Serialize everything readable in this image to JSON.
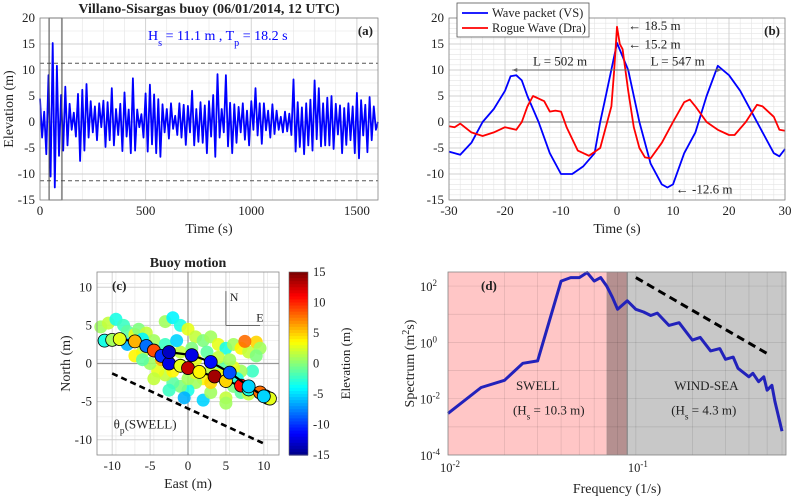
{
  "colors": {
    "blue": "#0000ff",
    "red": "#ff0000",
    "swell_region": "#ffc6c6",
    "windsea_region": "#c8c8c8",
    "overlap_region": "#b59090",
    "spectrum": "#2222bb"
  },
  "chart_data": [
    {
      "type": "line",
      "panel": "(a)",
      "title": "Villano-Sisargas buoy (06/01/2014, 12 UTC)",
      "xlabel": "Time (s)",
      "ylabel": "Elevation (m)",
      "annotation": {
        "hs": "H",
        "hs_sub": "s",
        "hs_val": " = 11.1 m  , T",
        "tp_sub": "p",
        "tp_val": " = 18.2 s"
      },
      "xlim": [
        0,
        1600
      ],
      "ylim": [
        -15,
        20
      ],
      "xticks": [
        0,
        500,
        1000,
        1500
      ],
      "yticks": [
        -15,
        -10,
        -5,
        0,
        5,
        10,
        15,
        20
      ],
      "threshold_lines": [
        11.3,
        -11.3
      ],
      "highlight_window": [
        43,
        104
      ],
      "t_step": 10,
      "values": [
        4.5,
        -3,
        2,
        -6.2,
        9,
        -10.5,
        15.2,
        -12.6,
        10.8,
        -6.5,
        5.2,
        -5.5,
        6.8,
        -4.5,
        3.5,
        -1.5,
        1.8,
        -2.8,
        5.4,
        -7.5,
        6.2,
        -5.5,
        7.3,
        -3,
        4,
        -2,
        3,
        -3.5,
        3.6,
        -1,
        4.1,
        -4.8,
        3.8,
        -3.5,
        6.5,
        -4.5,
        2.5,
        -2.5,
        3.5,
        -5.6,
        5.7,
        -2.8,
        2.4,
        -6,
        8.4,
        -5.5,
        2.4,
        -1,
        1.5,
        -3,
        5.5,
        -5.7,
        7.2,
        -4.3,
        5.3,
        -6,
        4.4,
        -6.7,
        3.4,
        -2,
        2.5,
        -3.2,
        3.6,
        -1.3,
        1.2,
        -2.5,
        3.6,
        -3,
        3.3,
        -4.4,
        3.1,
        -2,
        6,
        -4.5,
        2.5,
        -3.8,
        3.8,
        -4,
        3.2,
        -6,
        4,
        -2.8,
        5.2,
        -6.7,
        9.2,
        -3,
        2.5,
        -2,
        9,
        -4.7,
        3.7,
        -6,
        3.4,
        -4,
        2.9,
        -2,
        3.6,
        -3.4,
        2.2,
        -4.5,
        4,
        -1.5,
        6.5,
        -2.6,
        3.6,
        -4.2,
        3.6,
        -1.6,
        2.2,
        -3,
        3.4,
        -2.3,
        2.2,
        -1.5,
        1,
        -2,
        2,
        -1.8,
        1.6,
        -2.5,
        8.2,
        -5.7,
        3.8,
        -4.8,
        2.8,
        -6.2,
        3.6,
        -4.5,
        4.3,
        -5.5,
        8,
        -3.3,
        6.5,
        -4.7,
        3.6,
        -4.5,
        4.7,
        -4.5,
        5,
        -5.2,
        3.5,
        -2.4,
        3.2,
        -6,
        2.7,
        -4.4,
        3.6,
        -3.5,
        3,
        -6,
        5.6,
        -7,
        4.2,
        -2.6,
        3.3,
        -5.8,
        4.8,
        -3.5,
        3,
        -1.5,
        0
      ]
    },
    {
      "type": "line",
      "panel": "(b)",
      "xlabel": "Time (s)",
      "xlim": [
        -30,
        30
      ],
      "ylim": [
        -15,
        20
      ],
      "xticks": [
        -30,
        -20,
        -10,
        0,
        10,
        20,
        30
      ],
      "yticks": [
        -15,
        -10,
        -5,
        0,
        5,
        10,
        15,
        20
      ],
      "series": [
        {
          "name": "Wave packet (VS)",
          "color": "#0000ff",
          "x": [
            -30,
            -28,
            -26,
            -24,
            -22,
            -20,
            -19,
            -18,
            -17,
            -16,
            -14,
            -12,
            -10,
            -8,
            -6,
            -4,
            -3,
            -2,
            0,
            2,
            4,
            6,
            8,
            9,
            10,
            12,
            14,
            16,
            18,
            20,
            22,
            24,
            26,
            28,
            29,
            30
          ],
          "y": [
            -5.7,
            -6.3,
            -4,
            0,
            2.5,
            6,
            8.8,
            9,
            8,
            5,
            0,
            -6,
            -10,
            -10,
            -8.5,
            -6,
            0,
            5,
            15.2,
            10,
            0,
            -8,
            -12,
            -12.6,
            -12,
            -6,
            -2,
            5,
            10.8,
            9,
            6,
            2,
            -2,
            -6,
            -6.6,
            -5.2
          ]
        },
        {
          "name": "Rogue Wave (Dra)",
          "color": "#ff0000",
          "x": [
            -30,
            -29,
            -28,
            -26,
            -24,
            -22,
            -20,
            -18,
            -17,
            -16,
            -15,
            -14,
            -13,
            -12,
            -11,
            -10,
            -9,
            -7,
            -5,
            -3,
            -1,
            -0.5,
            0,
            0.5,
            1,
            2,
            3,
            4,
            5,
            6,
            8,
            10,
            12,
            13,
            14,
            16,
            18,
            20,
            21,
            23,
            25,
            26,
            28,
            29,
            30
          ],
          "y": [
            -0.8,
            -1,
            -0.3,
            -2,
            -2.7,
            -2,
            -1,
            -1.5,
            0,
            3,
            5,
            4.5,
            4,
            2,
            2.2,
            2,
            -1,
            -5.5,
            -6.5,
            -5,
            3,
            10,
            18.3,
            15,
            14,
            6,
            -1,
            -5,
            -6.8,
            -7,
            -4,
            0,
            3.8,
            4.3,
            3,
            0,
            -1.5,
            -2.5,
            -2.5,
            0,
            3.3,
            3,
            1,
            -1.5,
            -1.7
          ]
        }
      ],
      "annotations": [
        {
          "text": "← 18.5 m",
          "x": 2,
          "y": 18.5
        },
        {
          "text": "← 15.2 m",
          "x": 2,
          "y": 14.9
        },
        {
          "text": "← -12.6 m",
          "x": 10.5,
          "y": -13
        },
        {
          "text": "L = 502 m",
          "x": -15,
          "y": 11.6
        },
        {
          "text": "L = 547 m",
          "x": 6,
          "y": 11.6
        }
      ],
      "length_arrows": [
        {
          "from": 0,
          "to": -18.7,
          "y": 10
        },
        {
          "from": 0,
          "to": 18.7,
          "y": 10
        }
      ]
    },
    {
      "type": "scatter",
      "panel": "(c)",
      "title": "Buoy motion",
      "xlabel": "East (m)",
      "ylabel": "North (m)",
      "xlim": [
        -12,
        12
      ],
      "ylim": [
        -12,
        12
      ],
      "xticks": [
        -10,
        -5,
        0,
        5,
        10
      ],
      "yticks": [
        -10,
        -5,
        0,
        5,
        10
      ],
      "compass": {
        "north": "N",
        "east": "E"
      },
      "direction_label": {
        "theta": "θ",
        "sub": "p",
        "text": "(SWELL)"
      },
      "direction_line": [
        [
          -10,
          -1.3
        ],
        [
          10,
          -10.5
        ]
      ],
      "colorbar": {
        "label": "Elevation (m)",
        "range": [
          -15,
          15
        ],
        "ticks": [
          -15,
          -10,
          -5,
          0,
          5,
          10,
          15
        ]
      },
      "points": [
        [
          -11.5,
          4.8,
          1
        ],
        [
          -10.5,
          5.3,
          2
        ],
        [
          -9.5,
          5.8,
          -3
        ],
        [
          -8.5,
          5,
          -2
        ],
        [
          -8,
          4.2,
          -1
        ],
        [
          -7,
          3.8,
          3
        ],
        [
          -6.5,
          4.5,
          0
        ],
        [
          -5.5,
          4,
          2
        ],
        [
          -4.5,
          3,
          1
        ],
        [
          -5,
          2,
          -2
        ],
        [
          -6,
          1.5,
          2
        ],
        [
          -7,
          1,
          4
        ],
        [
          -4,
          1.5,
          3
        ],
        [
          -3,
          5.5,
          1
        ],
        [
          -2,
          6,
          -4
        ],
        [
          -1,
          5,
          -3
        ],
        [
          0,
          4.5,
          3
        ],
        [
          1,
          3.5,
          2
        ],
        [
          2,
          3,
          0
        ],
        [
          3,
          3.5,
          1
        ],
        [
          4,
          2.5,
          3
        ],
        [
          5,
          2,
          -3
        ],
        [
          6,
          2.5,
          1
        ],
        [
          7,
          2,
          4
        ],
        [
          8,
          1.5,
          2
        ],
        [
          9,
          2.8,
          5
        ],
        [
          9.5,
          2,
          1
        ],
        [
          7.5,
          2.9,
          8
        ],
        [
          9,
          1,
          0
        ],
        [
          8.5,
          -1,
          -2
        ],
        [
          7,
          -1,
          1
        ],
        [
          6,
          -0.5,
          3
        ],
        [
          4.5,
          -0.5,
          -1
        ],
        [
          3,
          -1,
          2
        ],
        [
          2,
          -2,
          4
        ],
        [
          1,
          -2.5,
          1
        ],
        [
          0,
          -3.5,
          -3
        ],
        [
          -1,
          -3,
          0
        ],
        [
          -2,
          -2.5,
          -1
        ],
        [
          -3,
          -1.5,
          2
        ],
        [
          -4,
          -1,
          3
        ],
        [
          -5,
          0,
          1
        ],
        [
          -6,
          0.5,
          -1
        ],
        [
          -4.5,
          -2,
          2
        ],
        [
          -2.5,
          -3.5,
          -2
        ],
        [
          -0.5,
          -4.5,
          -6
        ],
        [
          2,
          -4.8,
          -5
        ],
        [
          3,
          -3.8,
          1
        ],
        [
          5,
          -4.5,
          2
        ],
        [
          5,
          -5.2,
          1
        ],
        [
          6,
          -3,
          0
        ],
        [
          7,
          -3.8,
          -1
        ],
        [
          8,
          -4,
          2
        ],
        [
          4,
          -1.5,
          4
        ],
        [
          1,
          0.5,
          3
        ],
        [
          -1,
          1.5,
          2
        ],
        [
          -3,
          2.5,
          -2
        ],
        [
          -1.5,
          3,
          -5
        ],
        [
          0.5,
          2,
          0
        ],
        [
          2.5,
          1.5,
          -1
        ],
        [
          4,
          0.8,
          2
        ],
        [
          3,
          -2.5,
          5
        ],
        [
          -2,
          -1,
          4
        ],
        [
          -3.5,
          0.5,
          6
        ],
        [
          -8,
          2.5,
          -6
        ],
        [
          -6,
          3.2,
          -4
        ],
        [
          5.5,
          0.5,
          1
        ],
        [
          0,
          -2,
          1
        ],
        [
          1,
          -1.2,
          3
        ],
        [
          6.5,
          -2,
          -3
        ]
      ],
      "trajectory": [
        [
          -11,
          3,
          -3
        ],
        [
          -10,
          3.1,
          1
        ],
        [
          -9,
          3.2,
          3
        ],
        [
          -7,
          2.9,
          6
        ],
        [
          -5.5,
          2.3,
          -8
        ],
        [
          -4.5,
          1.7,
          9
        ],
        [
          -3.5,
          1,
          -10
        ],
        [
          -2.5,
          0,
          -12
        ],
        [
          -1,
          -0.3,
          3
        ],
        [
          0,
          -0.6,
          13
        ],
        [
          1.5,
          -1.1,
          4
        ],
        [
          3.5,
          -1.7,
          14
        ],
        [
          5,
          -2.3,
          5
        ],
        [
          7,
          -2.9,
          11
        ],
        [
          8,
          -3.4,
          -3
        ],
        [
          9.5,
          -3.8,
          8
        ],
        [
          10.2,
          -4.3,
          -4
        ],
        [
          10.5,
          -4.5,
          1
        ],
        [
          10.8,
          -4.6,
          3
        ]
      ],
      "trajectory2": [
        [
          -2.5,
          1.5,
          -13
        ],
        [
          0.5,
          1.1,
          -12
        ],
        [
          3,
          0.2,
          -11
        ],
        [
          5.5,
          -1.2,
          -9
        ],
        [
          8,
          -3,
          -5
        ],
        [
          10,
          -4.3,
          -5
        ]
      ]
    },
    {
      "type": "line",
      "panel": "(d)",
      "xlabel": "Frequency (1/s)",
      "ylabel": "Spectrum (m",
      "ylabel_sup": "2",
      "ylabel_end": "s)",
      "xscale": "log",
      "yscale": "log",
      "xlim": [
        0.01,
        0.63
      ],
      "ylim": [
        0.0001,
        316
      ],
      "xticks": [
        {
          "v": 0.01,
          "base": "10",
          "exp": "-2"
        },
        {
          "v": 0.1,
          "base": "10",
          "exp": "-1"
        }
      ],
      "yticks": [
        {
          "v": 0.0001,
          "base": "10",
          "exp": "-4"
        },
        {
          "v": 0.01,
          "base": "10",
          "exp": "-2"
        },
        {
          "v": 1,
          "base": "10",
          "exp": "0"
        },
        {
          "v": 100,
          "base": "10",
          "exp": "2"
        }
      ],
      "regions": [
        {
          "name": "swell",
          "range": [
            0.01,
            0.07
          ]
        },
        {
          "name": "overlap",
          "range": [
            0.07,
            0.09
          ]
        },
        {
          "name": "wind-sea",
          "range": [
            0.09,
            0.63
          ]
        }
      ],
      "region_labels": [
        {
          "title": "SWELL",
          "hs_pre": "(H",
          "hs_sub": "s",
          "hs_post": " = 10.3 m)",
          "x": 0.023
        },
        {
          "title": "WIND-SEA",
          "hs_pre": "(H",
          "hs_sub": "s",
          "hs_post": " = 4.3 m)",
          "x": 0.16
        }
      ],
      "x": [
        0.01,
        0.015,
        0.02,
        0.025,
        0.03,
        0.04,
        0.045,
        0.05,
        0.055,
        0.06,
        0.065,
        0.07,
        0.075,
        0.08,
        0.09,
        0.1,
        0.11,
        0.12,
        0.13,
        0.15,
        0.17,
        0.2,
        0.22,
        0.25,
        0.28,
        0.3,
        0.33,
        0.35,
        0.4,
        0.42,
        0.45,
        0.48,
        0.5,
        0.53,
        0.55,
        0.6
      ],
      "y": [
        0.003,
        0.025,
        0.045,
        0.18,
        0.22,
        150,
        200,
        200,
        300,
        150,
        200,
        100,
        40,
        15,
        30,
        15,
        12,
        9,
        11,
        4,
        5,
        1.2,
        1.5,
        0.5,
        0.6,
        0.25,
        0.3,
        0.12,
        0.06,
        0.08,
        0.04,
        0.06,
        0.02,
        0.03,
        0.008,
        0.0007
      ],
      "power_law_line": [
        [
          0.1,
          200
        ],
        [
          0.5,
          0.4
        ]
      ]
    }
  ]
}
